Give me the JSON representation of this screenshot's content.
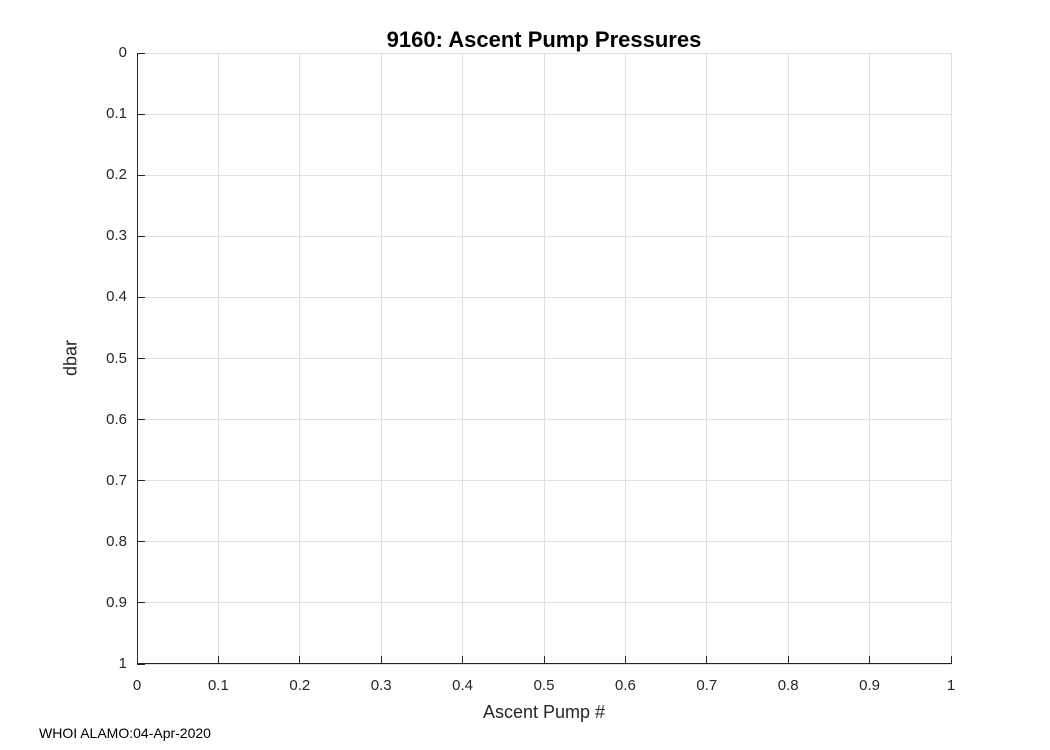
{
  "chart_data": {
    "type": "scatter",
    "title": "9160: Ascent Pump Pressures",
    "xlabel": "Ascent Pump #",
    "ylabel": "dbar",
    "xlim": [
      0,
      1
    ],
    "ylim": [
      0,
      1
    ],
    "y_axis_reversed": true,
    "grid": true,
    "legend": null,
    "x_ticks": [
      0,
      0.1,
      0.2,
      0.3,
      0.4,
      0.5,
      0.6,
      0.7,
      0.8,
      0.9,
      1
    ],
    "x_tick_labels": [
      "0",
      "0.1",
      "0.2",
      "0.3",
      "0.4",
      "0.5",
      "0.6",
      "0.7",
      "0.8",
      "0.9",
      "1"
    ],
    "y_ticks": [
      0,
      0.1,
      0.2,
      0.3,
      0.4,
      0.5,
      0.6,
      0.7,
      0.8,
      0.9,
      1
    ],
    "y_tick_labels": [
      "0",
      "0.1",
      "0.2",
      "0.3",
      "0.4",
      "0.5",
      "0.6",
      "0.7",
      "0.8",
      "0.9",
      "1"
    ],
    "series": [],
    "annotation": "WHOI ALAMO:04-Apr-2020",
    "colors": {
      "background": "#ffffff",
      "axis": "#262626",
      "grid": "#e0e0e0",
      "title": "#000000",
      "tick_label": "#262626"
    }
  }
}
